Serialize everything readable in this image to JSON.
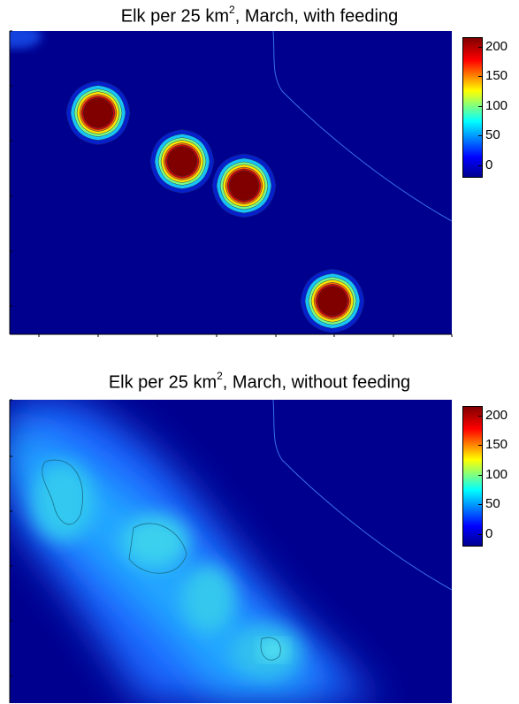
{
  "panels": [
    {
      "title_prefix": "Elk per 25 km",
      "title_sup": "2",
      "title_suffix": ", March, with feeding"
    },
    {
      "title_prefix": "Elk per 25 km",
      "title_sup": "2",
      "title_suffix": ", March, without feeding"
    }
  ],
  "colormap": {
    "name": "jet",
    "stops": [
      "#00008f",
      "#0000ff",
      "#00ffff",
      "#ffff00",
      "#ff0000",
      "#800000"
    ]
  },
  "chart_data": [
    {
      "type": "heatmap",
      "title": "Elk per 25 km², March, with feeding",
      "colorbar": {
        "min": -20,
        "max": 215,
        "ticks": [
          0,
          50,
          100,
          150,
          200
        ],
        "tick_labels": [
          "0",
          "50",
          "100",
          "150",
          "200"
        ]
      },
      "background_value": 0,
      "hotspots": [
        {
          "x": 0.2,
          "y": 0.27,
          "peak": 215
        },
        {
          "x": 0.39,
          "y": 0.43,
          "peak": 215
        },
        {
          "x": 0.53,
          "y": 0.51,
          "peak": 215
        },
        {
          "x": 0.73,
          "y": 0.89,
          "peak": 215
        }
      ],
      "grid": false
    },
    {
      "type": "heatmap",
      "title": "Elk per 25 km², March, without feeding",
      "colorbar": {
        "min": -20,
        "max": 215,
        "ticks": [
          0,
          50,
          100,
          150,
          200
        ],
        "tick_labels": [
          "0",
          "50",
          "100",
          "150",
          "200"
        ]
      },
      "background_value": 0,
      "peak_value": 70,
      "grid": false
    }
  ]
}
